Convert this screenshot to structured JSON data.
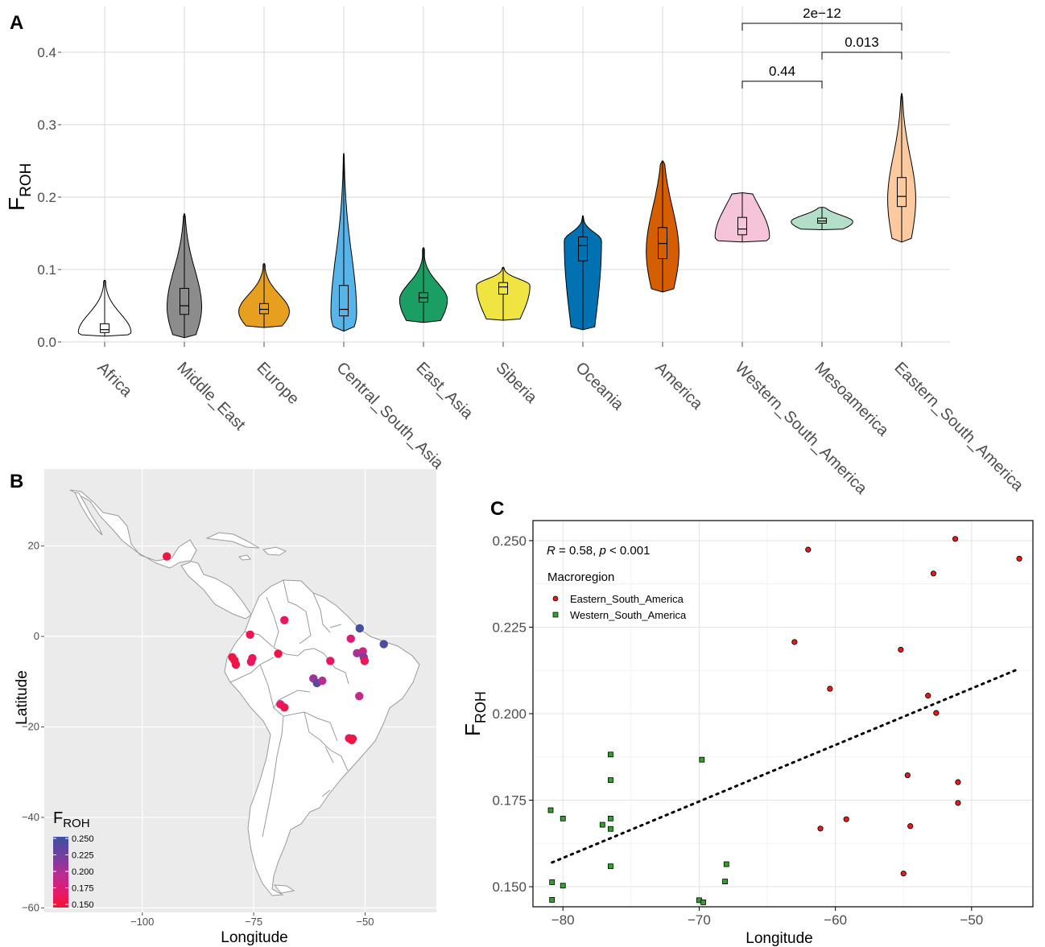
{
  "panels": {
    "a": "A",
    "b": "B",
    "c": "C"
  },
  "colors": {
    "grid": "#d9d9d9",
    "map_bg": "#ebebeb",
    "land": "#ffffff",
    "eastern": "#e41a1c",
    "western": "#33a02c"
  },
  "chart_data": [
    {
      "panel": "A",
      "type": "violin",
      "ylabel_main": "F",
      "ylabel_sub": "ROH",
      "ylim": [
        0,
        0.45
      ],
      "yticks": [
        "0.0",
        "0.1",
        "0.2",
        "0.3",
        "0.4"
      ],
      "ytick_values": [
        0,
        0.1,
        0.2,
        0.3,
        0.4
      ],
      "grid": true,
      "categories": [
        "Africa",
        "Middle_East",
        "Europe",
        "Central_South_Asia",
        "East_Asia",
        "Siberia",
        "Oceania",
        "America",
        "Western_South_America",
        "Mesoamerica",
        "Eastern_South_America"
      ],
      "series": [
        {
          "category": "Africa",
          "color": "#ffffff",
          "min": 0.008,
          "q1": 0.013,
          "median": 0.017,
          "q3": 0.025,
          "max": 0.085,
          "mode": 0.013
        },
        {
          "category": "Middle_East",
          "color": "#8c8c8c",
          "min": 0.006,
          "q1": 0.038,
          "median": 0.05,
          "q3": 0.074,
          "max": 0.177,
          "mode": 0.048
        },
        {
          "category": "Europe",
          "color": "#e69f1f",
          "min": 0.02,
          "q1": 0.039,
          "median": 0.045,
          "q3": 0.053,
          "max": 0.108,
          "mode": 0.042
        },
        {
          "category": "Central_South_Asia",
          "color": "#56b4e9",
          "min": 0.015,
          "q1": 0.036,
          "median": 0.045,
          "q3": 0.078,
          "max": 0.26,
          "mode": 0.038
        },
        {
          "category": "East_Asia",
          "color": "#1b9e64",
          "min": 0.027,
          "q1": 0.055,
          "median": 0.061,
          "q3": 0.068,
          "max": 0.13,
          "mode": 0.058
        },
        {
          "category": "Siberia",
          "color": "#f0e442",
          "min": 0.03,
          "q1": 0.066,
          "median": 0.076,
          "q3": 0.082,
          "max": 0.103,
          "mode": 0.078
        },
        {
          "category": "Oceania",
          "color": "#0072b2",
          "min": 0.017,
          "q1": 0.112,
          "median": 0.133,
          "q3": 0.145,
          "max": 0.174,
          "mode": 0.14
        },
        {
          "category": "America",
          "color": "#d55e00",
          "min": 0.069,
          "q1": 0.115,
          "median": 0.136,
          "q3": 0.158,
          "max": 0.25,
          "mode": 0.125
        },
        {
          "category": "Western_South_America",
          "color": "#f6c4d8",
          "min": 0.138,
          "q1": 0.148,
          "median": 0.156,
          "q3": 0.172,
          "max": 0.206,
          "mode": 0.145
        },
        {
          "category": "Mesoamerica",
          "color": "#b3dfc8",
          "min": 0.155,
          "q1": 0.164,
          "median": 0.167,
          "q3": 0.171,
          "max": 0.186,
          "mode": 0.166
        },
        {
          "category": "Eastern_South_America",
          "color": "#fdcaa0",
          "min": 0.138,
          "q1": 0.187,
          "median": 0.201,
          "q3": 0.227,
          "max": 0.343,
          "mode": 0.197
        }
      ],
      "comparisons": [
        {
          "from": "Western_South_America",
          "to": "Mesoamerica",
          "label": "0.44"
        },
        {
          "from": "Mesoamerica",
          "to": "Eastern_South_America",
          "label": "0.013"
        },
        {
          "from": "Western_South_America",
          "to": "Eastern_South_America",
          "label": "2e−12"
        }
      ]
    },
    {
      "panel": "B",
      "type": "scatter",
      "xlabel": "Longitude",
      "ylabel": "Latitude",
      "xlim": [
        -122,
        -34
      ],
      "ylim": [
        -61,
        37
      ],
      "xticks": [
        -100,
        -75,
        -50
      ],
      "xtick_labels": [
        "−100",
        "−75",
        "−50"
      ],
      "yticks": [
        20,
        0,
        -20,
        -40,
        -60
      ],
      "ytick_labels": [
        "20",
        "0",
        "−20",
        "−40",
        "−60"
      ],
      "legend": {
        "title_main": "F",
        "title_sub": "ROH",
        "labels": [
          "0.250",
          "0.225",
          "0.200",
          "0.175",
          "0.150"
        ],
        "min": 0.145,
        "max": 0.252,
        "position": "bottom-left"
      },
      "points": [
        {
          "lon": -94.5,
          "lat": 17.7,
          "froh": 0.155
        },
        {
          "lon": -68.1,
          "lat": 3.6,
          "froh": 0.165
        },
        {
          "lon": -75.8,
          "lat": 0.4,
          "froh": 0.16
        },
        {
          "lon": -79.8,
          "lat": -4.6,
          "froh": 0.155
        },
        {
          "lon": -79.3,
          "lat": -5.3,
          "froh": 0.152
        },
        {
          "lon": -79.0,
          "lat": -6.2,
          "froh": 0.158
        },
        {
          "lon": -75.3,
          "lat": -4.8,
          "froh": 0.162
        },
        {
          "lon": -75.6,
          "lat": -5.6,
          "froh": 0.165
        },
        {
          "lon": -69.5,
          "lat": -3.8,
          "froh": 0.155
        },
        {
          "lon": -57.8,
          "lat": -5.4,
          "froh": 0.168
        },
        {
          "lon": -51.2,
          "lat": 1.8,
          "froh": 0.25
        },
        {
          "lon": -53.2,
          "lat": -0.5,
          "froh": 0.18
        },
        {
          "lon": -45.8,
          "lat": -1.7,
          "froh": 0.245
        },
        {
          "lon": -50.5,
          "lat": -3.3,
          "froh": 0.185
        },
        {
          "lon": -51.8,
          "lat": -3.7,
          "froh": 0.205
        },
        {
          "lon": -50.3,
          "lat": -4.6,
          "froh": 0.225
        },
        {
          "lon": -50.1,
          "lat": -5.4,
          "froh": 0.165
        },
        {
          "lon": -61.6,
          "lat": -9.3,
          "froh": 0.21
        },
        {
          "lon": -60.8,
          "lat": -10.3,
          "froh": 0.24
        },
        {
          "lon": -59.6,
          "lat": -9.8,
          "froh": 0.2
        },
        {
          "lon": -51.3,
          "lat": -13.2,
          "froh": 0.195
        },
        {
          "lon": -69.0,
          "lat": -15.0,
          "froh": 0.172
        },
        {
          "lon": -68.1,
          "lat": -15.7,
          "froh": 0.158
        },
        {
          "lon": -53.6,
          "lat": -22.5,
          "froh": 0.168
        },
        {
          "lon": -52.8,
          "lat": -22.6,
          "froh": 0.16
        },
        {
          "lon": -53.0,
          "lat": -22.9,
          "froh": 0.152
        }
      ]
    },
    {
      "panel": "C",
      "type": "scatter",
      "xlabel": "Longitude",
      "ylabel_main": "F",
      "ylabel_sub": "ROH",
      "xlim": [
        -82.2,
        -45.5
      ],
      "ylim": [
        0.1442,
        0.2558
      ],
      "xticks": [
        -80,
        -70,
        -60,
        -50
      ],
      "xtick_labels": [
        "−80",
        "−70",
        "−60",
        "−50"
      ],
      "yticks": [
        0.15,
        0.175,
        0.2,
        0.225,
        0.25
      ],
      "ytick_labels": [
        "0.150",
        "0.175",
        "0.200",
        "0.225",
        "0.250"
      ],
      "annotation": {
        "r_label": "R",
        "r_text": " = 0.58, ",
        "p_label": "p",
        "p_text": " < 0.001"
      },
      "legend": {
        "title": "Macroregion",
        "position": "top-left"
      },
      "regression": {
        "x1": -80.8,
        "y1": 0.157,
        "x2": -46.5,
        "y2": 0.213
      },
      "series": [
        {
          "name": "Eastern_South_America",
          "marker": "circle",
          "points": [
            [
              -51.2,
              0.2505
            ],
            [
              -62.0,
              0.2474
            ],
            [
              -46.5,
              0.2448
            ],
            [
              -52.8,
              0.2405
            ],
            [
              -63.0,
              0.2207
            ],
            [
              -55.2,
              0.2185
            ],
            [
              -60.4,
              0.2072
            ],
            [
              -53.2,
              0.2052
            ],
            [
              -52.6,
              0.2002
            ],
            [
              -54.7,
              0.1822
            ],
            [
              -51.0,
              0.1802
            ],
            [
              -51.0,
              0.1742
            ],
            [
              -59.2,
              0.1695
            ],
            [
              -54.5,
              0.1675
            ],
            [
              -61.1,
              0.1668
            ],
            [
              -55.0,
              0.1538
            ]
          ]
        },
        {
          "name": "Western_South_America",
          "marker": "square",
          "points": [
            [
              -76.5,
              0.1882
            ],
            [
              -69.8,
              0.1867
            ],
            [
              -76.5,
              0.1808
            ],
            [
              -80.9,
              0.1721
            ],
            [
              -80.0,
              0.1697
            ],
            [
              -76.5,
              0.1697
            ],
            [
              -77.1,
              0.1679
            ],
            [
              -76.5,
              0.1667
            ],
            [
              -76.5,
              0.1559
            ],
            [
              -68.0,
              0.1565
            ],
            [
              -80.8,
              0.1513
            ],
            [
              -68.1,
              0.1515
            ],
            [
              -80.0,
              0.1503
            ],
            [
              -80.8,
              0.1462
            ],
            [
              -70.0,
              0.1461
            ],
            [
              -69.7,
              0.1455
            ]
          ]
        }
      ]
    }
  ]
}
